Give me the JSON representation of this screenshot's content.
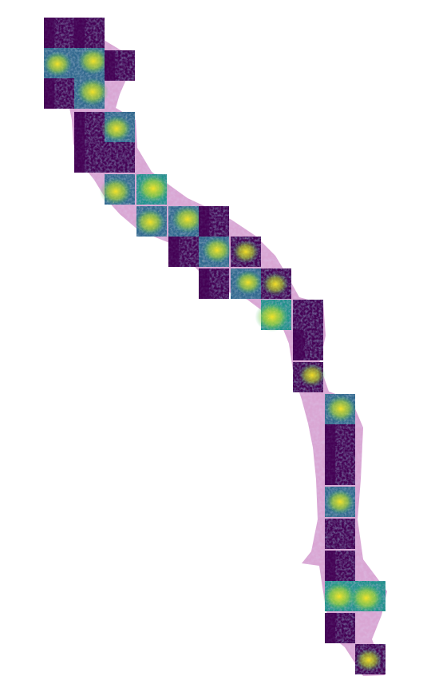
{
  "image": {
    "kind": "whole-slide tissue attention heatmap overlay",
    "colormap": "viridis",
    "colors": {
      "background": "#ffffff",
      "tissue_pink": "#d9a6d3",
      "tissue_light": "#ecc7e6",
      "tissue_purple": "#b784c7",
      "low": "#440154",
      "mid_low": "#31688e",
      "mid": "#21918c",
      "mid_high": "#35b779",
      "high": "#fde725"
    }
  }
}
